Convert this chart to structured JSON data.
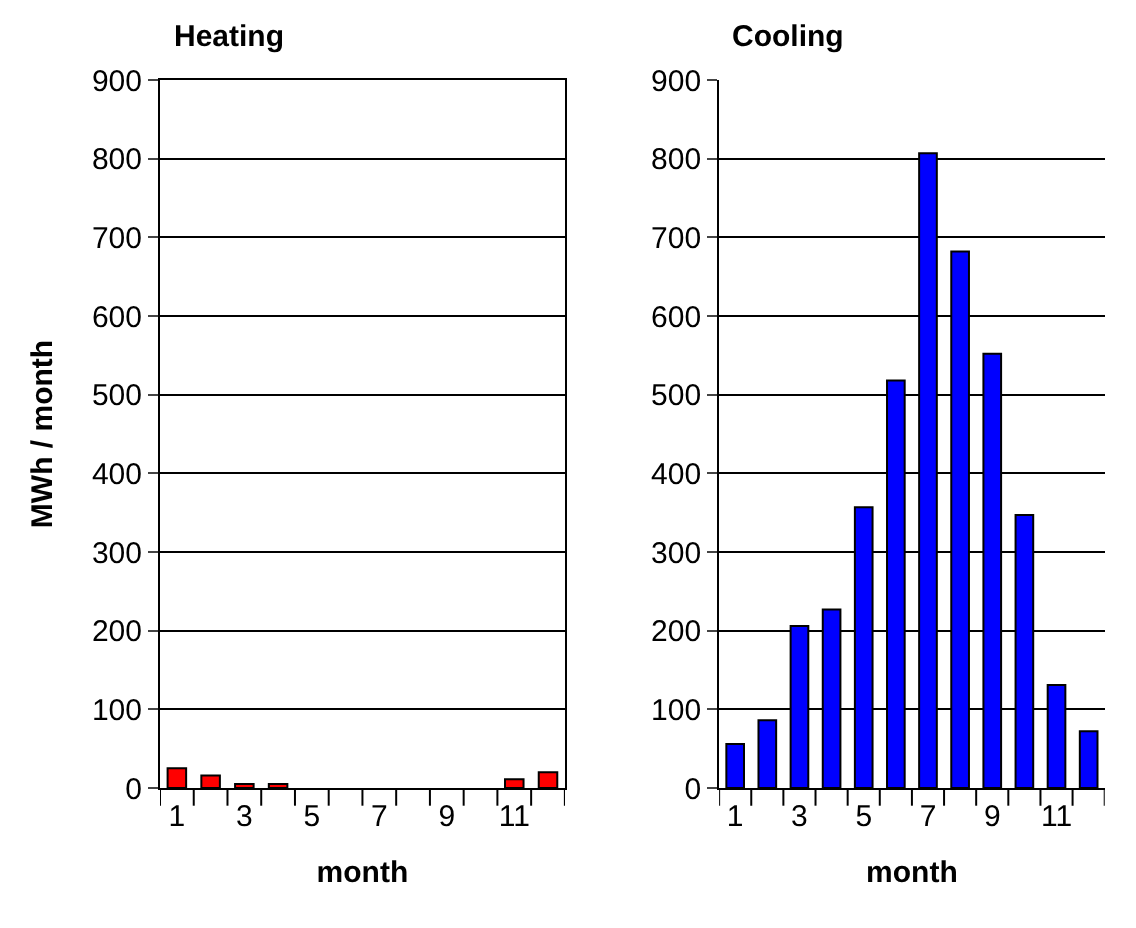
{
  "chart_data": [
    {
      "type": "bar",
      "title": "Heating",
      "xlabel": "month",
      "ylabel": "MWh / month",
      "categories": [
        "1",
        null,
        "3",
        null,
        "5",
        null,
        "7",
        null,
        "9",
        null,
        "11",
        null
      ],
      "values": [
        25,
        16,
        5,
        5,
        null,
        null,
        null,
        null,
        null,
        null,
        11,
        20
      ],
      "color": "#ff0000",
      "ylim": [
        0,
        900
      ],
      "yticks": [
        0,
        100,
        200,
        300,
        400,
        500,
        600,
        700,
        800,
        900
      ],
      "grid": "y"
    },
    {
      "type": "bar",
      "title": "Cooling",
      "xlabel": "month",
      "categories": [
        "1",
        null,
        "3",
        null,
        "5",
        null,
        "7",
        null,
        "9",
        null,
        "11",
        null
      ],
      "values": [
        56,
        86,
        206,
        227,
        357,
        518,
        807,
        682,
        552,
        347,
        131,
        72
      ],
      "color": "#0000ff",
      "ylim": [
        0,
        900
      ],
      "yticks": [
        0,
        100,
        200,
        300,
        400,
        500,
        600,
        700,
        800,
        900
      ],
      "grid": "y"
    }
  ]
}
